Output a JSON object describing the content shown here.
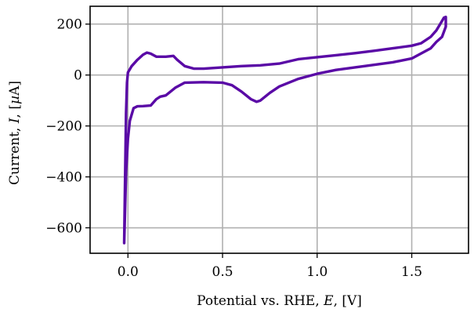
{
  "chart_data": {
    "type": "line",
    "title": "",
    "xlabel": "Potential vs. RHE, E, [V]",
    "ylabel": "Current, I, [µA]",
    "xlabel_parts": {
      "prefix": "Potential vs. RHE, ",
      "var": "E",
      "suffix": ", [V]"
    },
    "ylabel_parts": {
      "prefix": "Current, ",
      "var": "I",
      "suffix": ", [",
      "unit_var": "µ",
      "unit": "A]"
    },
    "xlim": [
      -0.2,
      1.8
    ],
    "ylim": [
      -700,
      270
    ],
    "xticks": [
      0.0,
      0.5,
      1.0,
      1.5
    ],
    "xtick_labels": [
      "0.0",
      "0.5",
      "1.0",
      "1.5"
    ],
    "yticks": [
      200,
      0,
      -200,
      -400,
      -600
    ],
    "ytick_labels": [
      "200",
      "0",
      "−200",
      "−400",
      "−600"
    ],
    "grid": true,
    "series": [
      {
        "color": "#5a0aa6",
        "x": [
          -0.02,
          -0.015,
          -0.01,
          -0.005,
          0.0,
          0.02,
          0.05,
          0.08,
          0.1,
          0.12,
          0.15,
          0.2,
          0.24,
          0.26,
          0.3,
          0.35,
          0.4,
          0.5,
          0.6,
          0.7,
          0.8,
          0.9,
          1.0,
          1.1,
          1.2,
          1.3,
          1.4,
          1.5,
          1.55,
          1.6,
          1.63,
          1.65,
          1.67,
          1.68,
          1.68,
          1.66,
          1.63,
          1.6,
          1.55,
          1.5,
          1.4,
          1.3,
          1.2,
          1.1,
          1.0,
          0.9,
          0.8,
          0.75,
          0.7,
          0.68,
          0.65,
          0.6,
          0.55,
          0.5,
          0.4,
          0.3,
          0.25,
          0.2,
          0.17,
          0.15,
          0.12,
          0.08,
          0.05,
          0.03,
          0.01,
          0.0,
          -0.01,
          -0.015,
          -0.02
        ],
        "y": [
          -660,
          -400,
          -150,
          -30,
          10,
          35,
          60,
          80,
          88,
          84,
          72,
          72,
          75,
          60,
          35,
          25,
          25,
          30,
          35,
          38,
          45,
          62,
          70,
          78,
          86,
          95,
          105,
          115,
          125,
          150,
          175,
          200,
          225,
          228,
          190,
          150,
          130,
          105,
          85,
          65,
          50,
          40,
          30,
          20,
          5,
          -15,
          -45,
          -70,
          -100,
          -105,
          -95,
          -65,
          -40,
          -30,
          -28,
          -30,
          -50,
          -80,
          -85,
          -95,
          -120,
          -122,
          -123,
          -130,
          -180,
          -250,
          -380,
          -520,
          -660
        ]
      }
    ]
  }
}
